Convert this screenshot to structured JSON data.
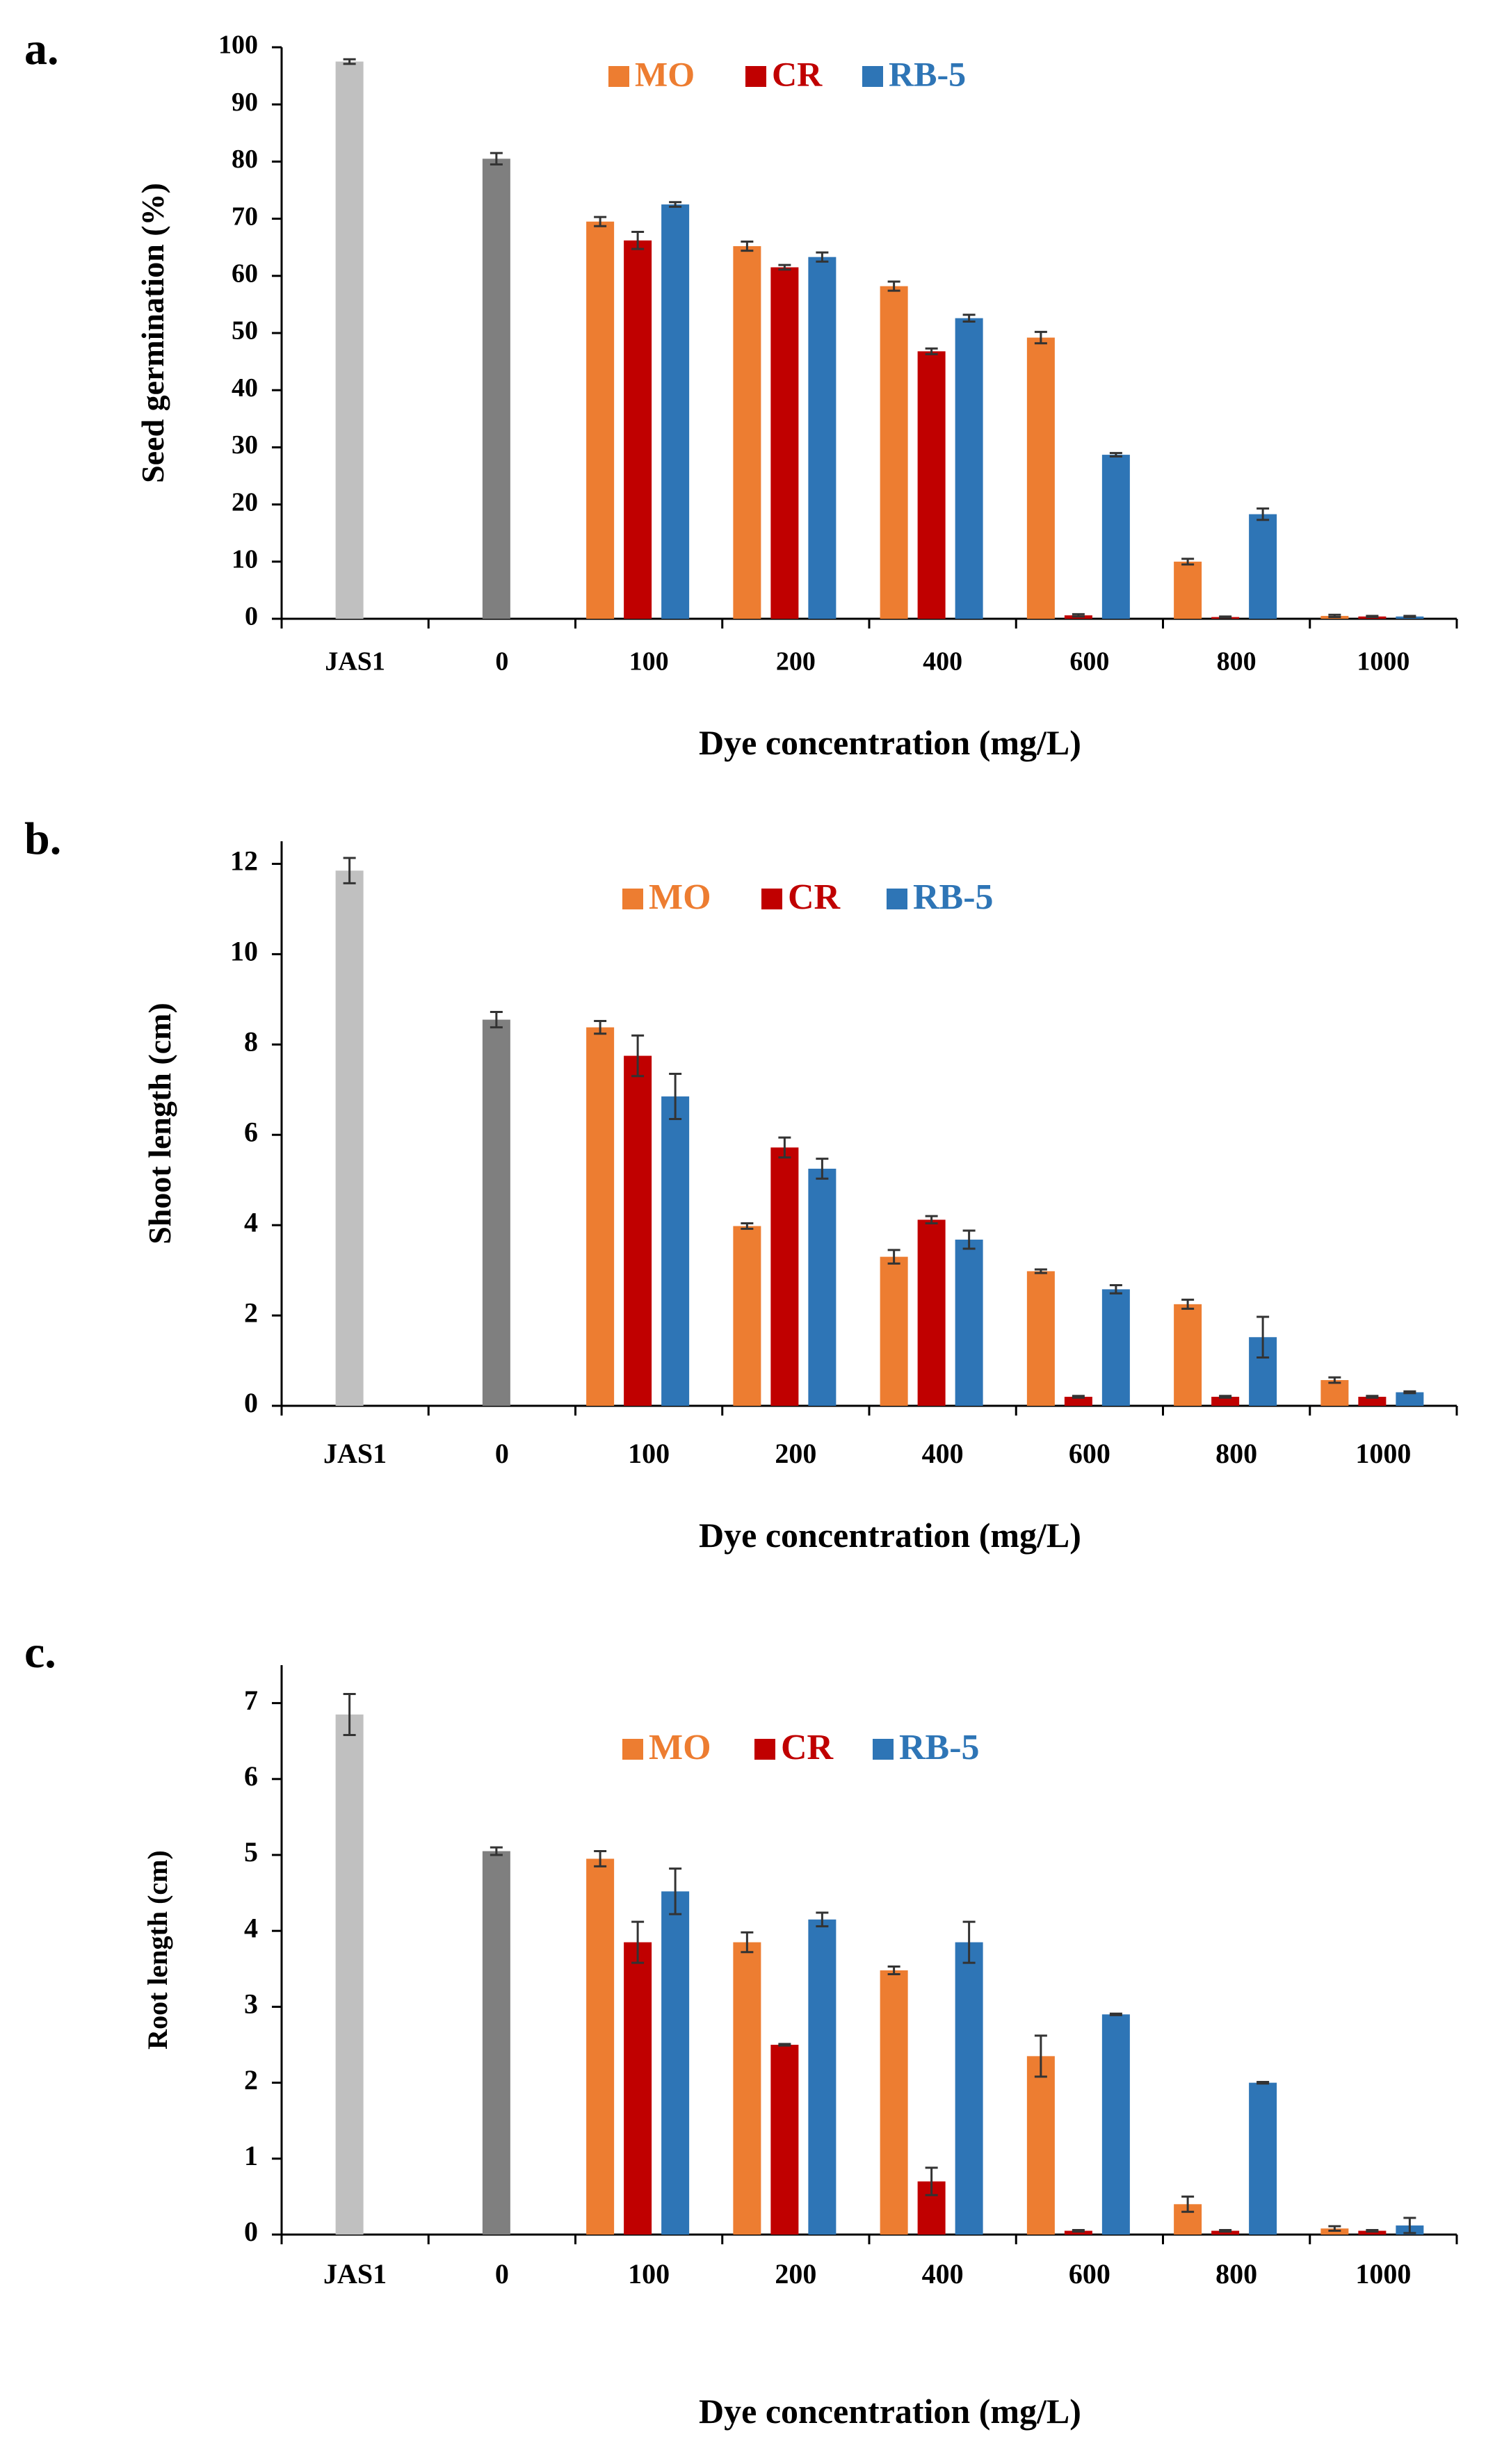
{
  "colors": {
    "JAS1": "#c0c0c0",
    "control": "#7f7f7f",
    "MO": "#ed7d31",
    "CR": "#c00000",
    "RB-5": "#2e75b6"
  },
  "legend": [
    {
      "key": "MO",
      "label": "MO"
    },
    {
      "key": "CR",
      "label": "CR"
    },
    {
      "key": "RB-5",
      "label": "RB-5"
    }
  ],
  "chart_data": [
    {
      "type": "bar",
      "panel_label": "a.",
      "title": "",
      "xlabel": "Dye concentration (mg/L)",
      "ylabel": "Seed germination (%)",
      "ylim": [
        0,
        100
      ],
      "yticks": [
        "0",
        "10",
        "20",
        "30",
        "40",
        "50",
        "60",
        "70",
        "80",
        "90",
        "100"
      ],
      "categories": [
        "JAS1",
        "0",
        "100",
        "200",
        "400",
        "600",
        "800",
        "1000"
      ],
      "controls": [
        {
          "category": "JAS1",
          "value": 97.5,
          "err": 0.4
        },
        {
          "category": "0",
          "value": 80.5,
          "err": 1.0
        }
      ],
      "series": [
        {
          "name": "MO",
          "values": [
            null,
            null,
            69.5,
            65.2,
            58.2,
            49.2,
            10.0,
            0.5
          ],
          "errors": [
            null,
            null,
            0.8,
            0.8,
            0.8,
            1.0,
            0.5,
            0.2
          ]
        },
        {
          "name": "CR",
          "values": [
            null,
            null,
            66.2,
            61.5,
            46.8,
            0.6,
            0.3,
            0.4
          ],
          "errors": [
            null,
            null,
            1.5,
            0.4,
            0.5,
            0.2,
            0.1,
            0.1
          ]
        },
        {
          "name": "RB-5",
          "values": [
            null,
            null,
            72.5,
            63.3,
            52.6,
            28.7,
            18.3,
            0.4
          ],
          "errors": [
            null,
            null,
            0.4,
            0.8,
            0.6,
            0.3,
            1.0,
            0.1
          ]
        }
      ]
    },
    {
      "type": "bar",
      "panel_label": "b.",
      "title": "",
      "xlabel": "Dye concentration (mg/L)",
      "ylabel": "Shoot length (cm)",
      "ylim": [
        0,
        12.5
      ],
      "yticks": [
        "0",
        "2",
        "4",
        "6",
        "8",
        "10",
        "12"
      ],
      "categories": [
        "JAS1",
        "0",
        "100",
        "200",
        "400",
        "600",
        "800",
        "1000"
      ],
      "controls": [
        {
          "category": "JAS1",
          "value": 11.85,
          "err": 0.28
        },
        {
          "category": "0",
          "value": 8.55,
          "err": 0.17
        }
      ],
      "series": [
        {
          "name": "MO",
          "values": [
            null,
            null,
            8.38,
            3.98,
            3.3,
            2.98,
            2.25,
            0.57
          ],
          "errors": [
            null,
            null,
            0.14,
            0.06,
            0.15,
            0.04,
            0.1,
            0.06
          ]
        },
        {
          "name": "CR",
          "values": [
            null,
            null,
            7.75,
            5.72,
            4.12,
            0.2,
            0.2,
            0.2
          ],
          "errors": [
            null,
            null,
            0.45,
            0.22,
            0.08,
            0.02,
            0.02,
            0.02
          ]
        },
        {
          "name": "RB-5",
          "values": [
            null,
            null,
            6.85,
            5.25,
            3.68,
            2.58,
            1.52,
            0.3
          ],
          "errors": [
            null,
            null,
            0.5,
            0.22,
            0.2,
            0.09,
            0.45,
            0.02
          ]
        }
      ]
    },
    {
      "type": "bar",
      "panel_label": "c.",
      "title": "",
      "xlabel": "Dye concentration (mg/L)",
      "ylabel": "Root length (cm)",
      "ylim": [
        0,
        7.5
      ],
      "yticks": [
        "0",
        "1",
        "2",
        "3",
        "4",
        "5",
        "6",
        "7"
      ],
      "categories": [
        "JAS1",
        "0",
        "100",
        "200",
        "400",
        "600",
        "800",
        "1000"
      ],
      "controls": [
        {
          "category": "JAS1",
          "value": 6.85,
          "err": 0.27
        },
        {
          "category": "0",
          "value": 5.05,
          "err": 0.05
        }
      ],
      "series": [
        {
          "name": "MO",
          "values": [
            null,
            null,
            4.95,
            3.85,
            3.48,
            2.35,
            0.4,
            0.08
          ],
          "errors": [
            null,
            null,
            0.1,
            0.13,
            0.05,
            0.27,
            0.1,
            0.03
          ]
        },
        {
          "name": "CR",
          "values": [
            null,
            null,
            3.85,
            2.5,
            0.7,
            0.05,
            0.05,
            0.05
          ],
          "errors": [
            null,
            null,
            0.27,
            0.01,
            0.18,
            0.01,
            0.01,
            0.01
          ]
        },
        {
          "name": "RB-5",
          "values": [
            null,
            null,
            4.52,
            4.15,
            3.85,
            2.9,
            2.0,
            0.12
          ],
          "errors": [
            null,
            null,
            0.3,
            0.09,
            0.27,
            0.01,
            0.01,
            0.1
          ]
        }
      ]
    }
  ]
}
